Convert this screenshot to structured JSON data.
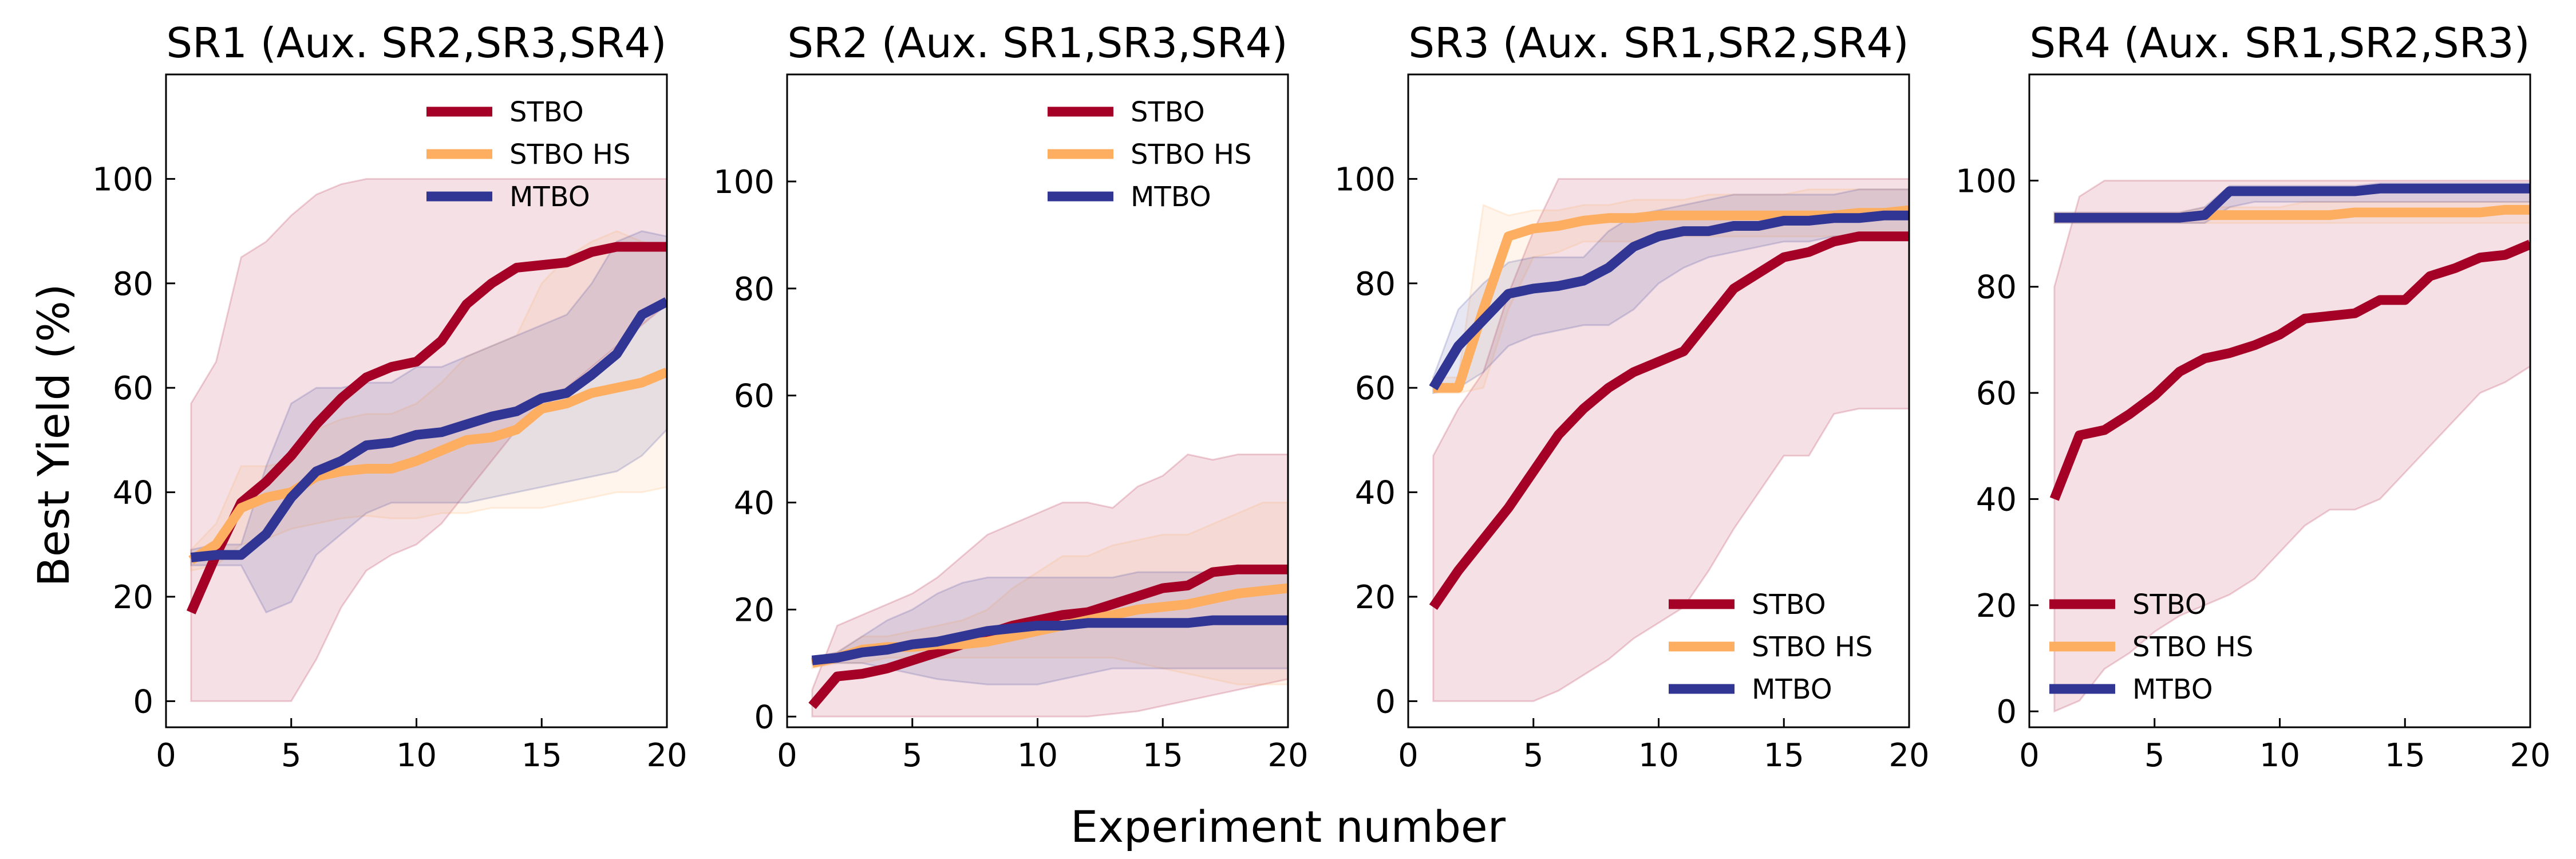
{
  "figure": {
    "ylabel": "Best Yield (%)",
    "xlabel": "Experiment number"
  },
  "chart_data": [
    {
      "type": "line",
      "title": "SR1 (Aux. SR2,SR3,SR4)",
      "xlabel": "Experiment number",
      "ylabel": "Best Yield (%)",
      "xlim": [
        0,
        20
      ],
      "ylim": [
        -5,
        120
      ],
      "xticks": [
        0,
        5,
        10,
        15,
        20
      ],
      "yticks": [
        0,
        20,
        40,
        60,
        80,
        100
      ],
      "legend_position": "top-right",
      "x": [
        1,
        2,
        3,
        4,
        5,
        6,
        7,
        8,
        9,
        10,
        11,
        12,
        13,
        14,
        15,
        16,
        17,
        18,
        19,
        20
      ],
      "series": [
        {
          "name": "STBO",
          "color": "#a50026",
          "values": [
            17,
            28,
            38,
            42,
            47,
            53,
            58,
            62,
            64,
            65,
            69,
            76,
            80,
            83,
            83.5,
            84,
            86,
            87,
            87,
            87
          ],
          "lower": [
            0,
            0,
            0,
            0,
            0,
            8,
            18,
            25,
            28,
            30,
            34,
            40,
            46,
            52,
            56,
            60,
            64,
            68,
            72,
            76
          ],
          "upper": [
            57,
            65,
            85,
            88,
            93,
            97,
            99,
            100,
            100,
            100,
            100,
            100,
            100,
            100,
            100,
            100,
            100,
            100,
            100,
            100
          ]
        },
        {
          "name": "STBO HS",
          "color": "#fdae61",
          "values": [
            27,
            30,
            37,
            39,
            40,
            43,
            44,
            44.5,
            44.5,
            46,
            48,
            50,
            50.5,
            52,
            56,
            57,
            59,
            60,
            61,
            63
          ],
          "lower": [
            25,
            26,
            30,
            31,
            33,
            34,
            35,
            35.5,
            35,
            35,
            36,
            36,
            37,
            37,
            37,
            38,
            39,
            40,
            40,
            41
          ],
          "upper": [
            29,
            34,
            45,
            45,
            46,
            52,
            54,
            55,
            55,
            57,
            61,
            66,
            68,
            70,
            80,
            85,
            88,
            90,
            88,
            87
          ]
        },
        {
          "name": "MTBO",
          "color": "#313695",
          "values": [
            27.5,
            28,
            28,
            32,
            39,
            44,
            46,
            49,
            49.5,
            51,
            51.5,
            53,
            54.5,
            55.5,
            58,
            59,
            62.5,
            66.5,
            74,
            76.5
          ],
          "lower": [
            26,
            26,
            26,
            17,
            19,
            28,
            32,
            36,
            38,
            38,
            38,
            38,
            39,
            40,
            41,
            42,
            43,
            44,
            47,
            52
          ],
          "upper": [
            29,
            30,
            30,
            45,
            57,
            60,
            60,
            61,
            61,
            64,
            64,
            66,
            68,
            70,
            72,
            74,
            80,
            88,
            90,
            89
          ]
        }
      ]
    },
    {
      "type": "line",
      "title": "SR2 (Aux. SR1,SR3,SR4)",
      "xlabel": "Experiment number",
      "ylabel": "Best Yield (%)",
      "xlim": [
        0,
        20
      ],
      "ylim": [
        -2,
        120
      ],
      "xticks": [
        0,
        5,
        10,
        15,
        20
      ],
      "yticks": [
        0,
        20,
        40,
        60,
        80,
        100
      ],
      "legend_position": "top-right",
      "x": [
        1,
        2,
        3,
        4,
        5,
        6,
        7,
        8,
        9,
        10,
        11,
        12,
        13,
        14,
        15,
        16,
        17,
        18,
        19,
        20
      ],
      "series": [
        {
          "name": "STBO",
          "color": "#a50026",
          "values": [
            2,
            7.5,
            8,
            9,
            10.5,
            12,
            13.5,
            15.5,
            17,
            18,
            19,
            19.5,
            21,
            22.5,
            24,
            24.5,
            27,
            27.5,
            27.5,
            27.5
          ],
          "lower": [
            0,
            0,
            0,
            0,
            0,
            0,
            0,
            0,
            0,
            0,
            0,
            0,
            0.5,
            1,
            2,
            3,
            4,
            5,
            6,
            7
          ],
          "upper": [
            5,
            17,
            19,
            21,
            23,
            26,
            30,
            34,
            36,
            38,
            40,
            40,
            39,
            43,
            45,
            49,
            48,
            49,
            49,
            49
          ]
        },
        {
          "name": "STBO HS",
          "color": "#fdae61",
          "values": [
            10,
            11,
            12.5,
            13,
            13,
            13.5,
            13.5,
            14,
            15,
            16,
            17,
            18,
            19,
            20,
            20.5,
            21,
            22,
            23,
            23.5,
            24
          ],
          "lower": [
            9,
            10,
            10,
            11,
            11,
            11,
            11,
            11,
            11,
            11,
            11,
            11,
            11,
            10,
            9,
            8,
            7,
            6,
            6,
            6
          ],
          "upper": [
            11,
            12,
            15,
            15,
            16,
            17,
            18,
            20,
            24,
            27,
            30,
            30,
            32,
            33,
            34,
            34,
            36,
            38,
            40,
            40
          ]
        },
        {
          "name": "MTBO",
          "color": "#313695",
          "values": [
            10.5,
            11,
            12,
            12.5,
            13.5,
            14,
            15,
            16,
            16.5,
            17,
            17,
            17.5,
            17.5,
            17.5,
            17.5,
            17.5,
            18,
            18,
            18,
            18
          ],
          "lower": [
            10,
            10,
            10,
            9,
            8,
            7,
            6.5,
            6,
            6,
            6,
            7,
            8,
            9,
            9,
            9,
            9,
            9,
            9,
            9,
            9
          ],
          "upper": [
            11,
            12,
            15,
            18,
            20,
            23,
            25,
            26,
            26,
            26,
            26,
            26,
            26,
            27,
            27,
            27,
            27,
            27,
            27,
            27
          ]
        }
      ]
    },
    {
      "type": "line",
      "title": "SR3 (Aux. SR1,SR2,SR4)",
      "xlabel": "Experiment number",
      "ylabel": "Best Yield (%)",
      "xlim": [
        0,
        20
      ],
      "ylim": [
        -5,
        120
      ],
      "xticks": [
        0,
        5,
        10,
        15,
        20
      ],
      "yticks": [
        0,
        20,
        40,
        60,
        80,
        100
      ],
      "legend_position": "lower-right",
      "x": [
        1,
        2,
        3,
        4,
        5,
        6,
        7,
        8,
        9,
        10,
        11,
        12,
        13,
        14,
        15,
        16,
        17,
        18,
        19,
        20
      ],
      "series": [
        {
          "name": "STBO",
          "color": "#a50026",
          "values": [
            18,
            25,
            31,
            37,
            44,
            51,
            56,
            60,
            63,
            65,
            67,
            73,
            79,
            82,
            85,
            86,
            88,
            89,
            89,
            89
          ],
          "lower": [
            0,
            0,
            0,
            0,
            0,
            2,
            5,
            8,
            12,
            15,
            18,
            25,
            33,
            40,
            47,
            47,
            55,
            56,
            56,
            56
          ],
          "upper": [
            47,
            56,
            63,
            78,
            90,
            100,
            100,
            100,
            100,
            100,
            100,
            100,
            100,
            100,
            100,
            100,
            100,
            100,
            100,
            100
          ]
        },
        {
          "name": "STBO HS",
          "color": "#fdae61",
          "values": [
            60,
            60,
            75,
            89,
            90.5,
            91,
            92,
            92.5,
            92.5,
            93,
            93,
            93,
            93,
            93,
            93,
            93,
            93,
            93.5,
            93.5,
            94
          ],
          "lower": [
            59,
            59,
            60,
            75,
            85,
            86,
            88,
            88,
            88,
            89,
            89,
            89,
            89,
            89,
            89,
            89,
            89,
            89,
            89,
            89
          ],
          "upper": [
            62,
            62,
            95,
            93,
            94,
            94,
            95,
            95,
            96,
            96,
            96,
            97,
            97,
            97,
            97,
            98,
            98,
            98,
            98,
            98
          ]
        },
        {
          "name": "MTBO",
          "color": "#313695",
          "values": [
            60,
            68,
            73,
            78,
            79,
            79.5,
            80.5,
            83,
            87,
            89,
            90,
            90,
            91,
            91,
            92,
            92,
            92.5,
            92.5,
            93,
            93
          ],
          "lower": [
            59,
            60,
            63,
            68,
            70,
            71,
            72,
            72,
            75,
            80,
            83,
            85,
            86,
            87,
            88,
            88,
            89,
            89,
            89,
            89
          ],
          "upper": [
            62,
            75,
            80,
            84,
            85,
            85,
            85,
            90,
            93,
            94,
            95,
            96,
            97,
            97,
            97,
            97,
            97,
            98,
            98,
            98
          ]
        }
      ]
    },
    {
      "type": "line",
      "title": "SR4 (Aux. SR1,SR2,SR3)",
      "xlabel": "Experiment number",
      "ylabel": "Best Yield (%)",
      "xlim": [
        0,
        20
      ],
      "ylim": [
        -3,
        120
      ],
      "xticks": [
        0,
        5,
        10,
        15,
        20
      ],
      "yticks": [
        0,
        20,
        40,
        60,
        80,
        100
      ],
      "legend_position": "lower-left",
      "x": [
        1,
        2,
        3,
        4,
        5,
        6,
        7,
        8,
        9,
        10,
        11,
        12,
        13,
        14,
        15,
        16,
        17,
        18,
        19,
        20
      ],
      "series": [
        {
          "name": "STBO",
          "color": "#a50026",
          "values": [
            40,
            52,
            53,
            56,
            59.5,
            64,
            66.5,
            67.5,
            69,
            71,
            74,
            74.5,
            75,
            77.5,
            77.5,
            82,
            83.5,
            85.5,
            86,
            88
          ],
          "lower": [
            0,
            2,
            8,
            11,
            15,
            18,
            20,
            22,
            25,
            30,
            35,
            38,
            38,
            40,
            45,
            50,
            55,
            60,
            62,
            65
          ],
          "upper": [
            80,
            97,
            100,
            100,
            100,
            100,
            100,
            100,
            100,
            100,
            100,
            100,
            100,
            100,
            100,
            100,
            100,
            100,
            100,
            100
          ]
        },
        {
          "name": "STBO HS",
          "color": "#fdae61",
          "values": [
            93,
            93,
            93,
            93,
            93,
            93,
            93.5,
            93.5,
            93.5,
            93.5,
            93.5,
            93.5,
            94,
            94,
            94,
            94,
            94,
            94,
            94.5,
            94.5
          ],
          "lower": [
            92,
            92,
            92,
            92,
            92,
            92,
            92,
            92,
            92,
            92,
            92,
            92,
            92,
            92,
            92,
            92,
            92,
            92,
            92,
            92
          ],
          "upper": [
            94,
            94,
            94,
            94,
            94,
            94,
            95,
            95,
            95,
            95,
            96,
            96,
            96,
            96,
            96,
            96,
            96,
            96,
            96,
            96
          ]
        },
        {
          "name": "MTBO",
          "color": "#313695",
          "values": [
            93,
            93,
            93,
            93,
            93,
            93,
            93.5,
            98,
            98,
            98,
            98,
            98,
            98,
            98.5,
            98.5,
            98.5,
            98.5,
            98.5,
            98.5,
            98.5
          ],
          "lower": [
            92,
            92,
            92,
            92,
            92,
            92,
            92,
            95,
            96,
            96,
            96,
            96,
            96,
            96,
            96,
            96,
            96,
            96,
            96,
            96
          ],
          "upper": [
            94,
            94,
            94,
            94,
            94,
            94,
            95,
            99,
            99,
            99,
            99,
            99,
            99,
            99.5,
            99.5,
            99.5,
            99.5,
            99.5,
            99.5,
            99.5
          ]
        }
      ]
    }
  ]
}
